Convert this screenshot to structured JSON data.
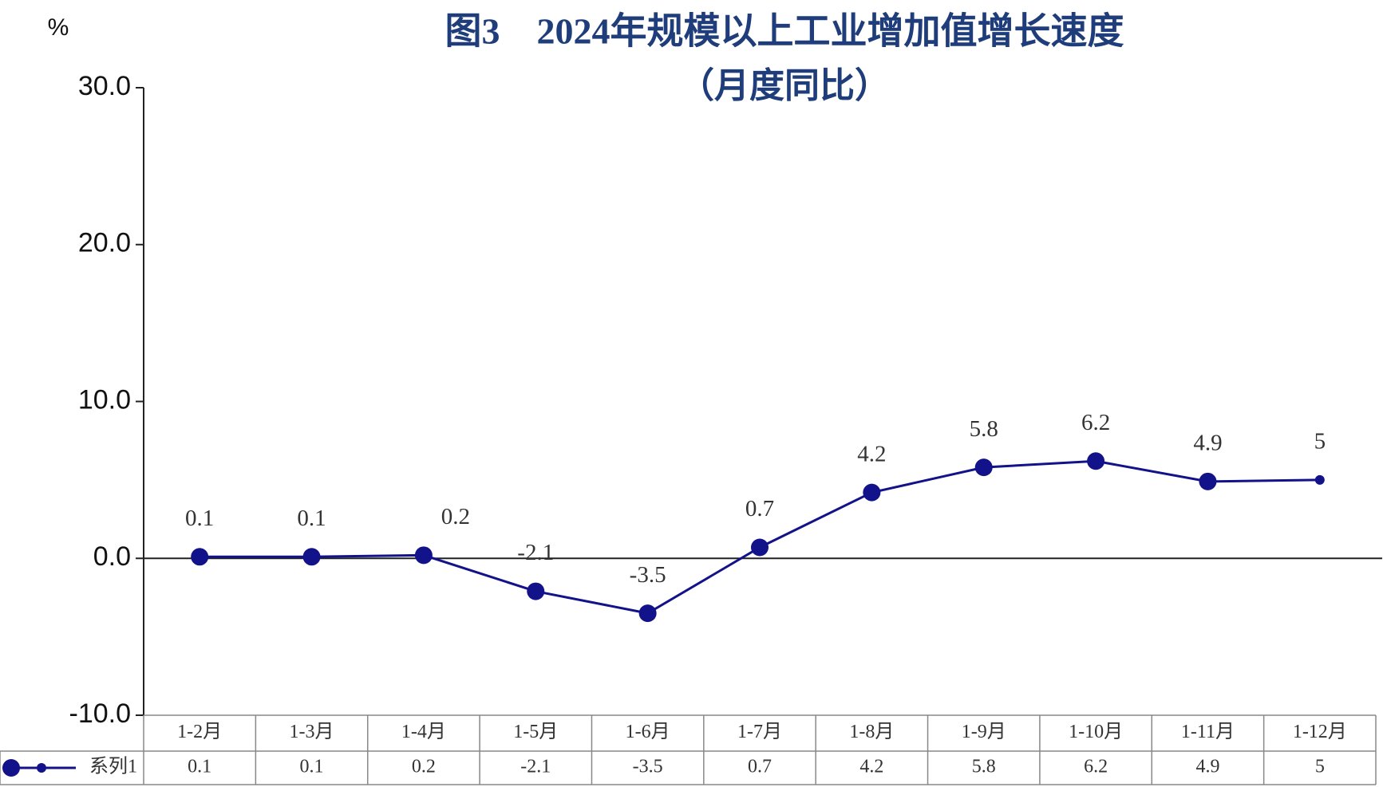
{
  "chart_data": {
    "type": "line",
    "title": "图3　2024年规模以上工业增加值增长速度",
    "subtitle": "（月度同比）",
    "y_label": "%",
    "categories": [
      "1-2月",
      "1-3月",
      "1-4月",
      "1-5月",
      "1-6月",
      "1-7月",
      "1-8月",
      "1-9月",
      "1-10月",
      "1-11月",
      "1-12月"
    ],
    "series": [
      {
        "name": "系列1",
        "color": "#12128a",
        "values": [
          0.1,
          0.1,
          0.2,
          -2.1,
          -3.5,
          0.7,
          4.2,
          5.8,
          6.2,
          4.9,
          5
        ]
      }
    ],
    "ylim": [
      -10,
      30
    ],
    "yticks": [
      {
        "value": -10,
        "label": "-10.0"
      },
      {
        "value": 0,
        "label": "0.0"
      },
      {
        "value": 10,
        "label": "10.0"
      },
      {
        "value": 20,
        "label": "20.0"
      },
      {
        "value": 30,
        "label": "30.0"
      }
    ],
    "grid": false,
    "data_table": true
  }
}
